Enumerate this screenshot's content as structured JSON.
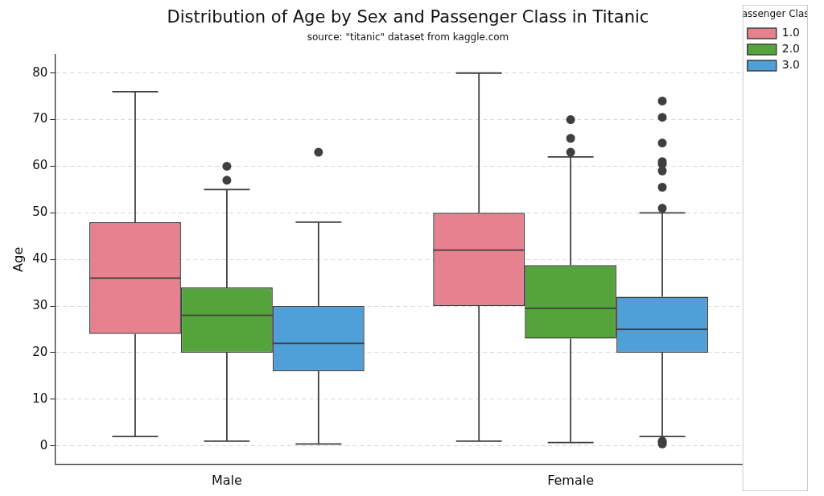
{
  "chart_data": {
    "type": "box",
    "title": "Distribution of Age by Sex and Passenger Class in Titanic",
    "subtitle": "source: \"titanic\" dataset from kaggle.com",
    "y_label": "Age",
    "categories": [
      "Male",
      "Female"
    ],
    "legend_title": "Passenger Class",
    "legend": "upper right",
    "grid": true,
    "ylim": [
      -4,
      84
    ],
    "yticks": [
      0,
      10,
      20,
      30,
      40,
      50,
      60,
      70,
      80
    ],
    "series": [
      {
        "name": "1.0",
        "color": "#e7808f",
        "values": [
          {
            "min": 2,
            "q1": 24,
            "median": 36,
            "q3": 48,
            "max": 76,
            "outliers": []
          },
          {
            "min": 1,
            "q1": 30,
            "median": 42,
            "q3": 50,
            "max": 80,
            "outliers": []
          }
        ]
      },
      {
        "name": "2.0",
        "color": "#54a33b",
        "values": [
          {
            "min": 1,
            "q1": 20,
            "median": 28,
            "q3": 34,
            "max": 55,
            "outliers": [
              57,
              60
            ]
          },
          {
            "min": 0.7,
            "q1": 23,
            "median": 29.5,
            "q3": 38.8,
            "max": 62,
            "outliers": [
              63,
              66,
              70
            ]
          }
        ]
      },
      {
        "name": "3.0",
        "color": "#4f9fd9",
        "values": [
          {
            "min": 0.4,
            "q1": 16,
            "median": 22,
            "q3": 30,
            "max": 48,
            "outliers": [
              63
            ]
          },
          {
            "min": 2,
            "q1": 20,
            "median": 25,
            "q3": 32,
            "max": 50,
            "outliers": [
              0.4,
              0.8,
              1,
              51,
              55.5,
              59,
              60.5,
              61,
              65,
              70.5,
              74
            ]
          }
        ]
      }
    ]
  }
}
